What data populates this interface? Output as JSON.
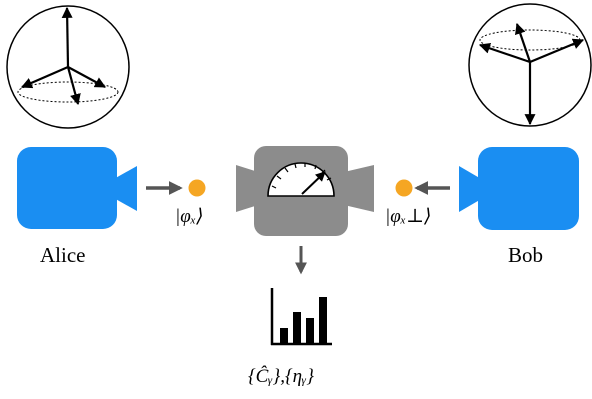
{
  "parties": {
    "alice": {
      "name": "Alice",
      "state_label": "|φₓ⟩"
    },
    "bob": {
      "name": "Bob",
      "state_label": "|φₓ⊥⟩"
    }
  },
  "output": {
    "label": "{Ĉᵧ},{ηᵧ}"
  },
  "colors": {
    "camera": "#1a8ef2",
    "photon": "#f5a623",
    "device": "#8c8c8c",
    "arrow": "#555555"
  },
  "icons": {
    "alice_source": "video-camera-icon",
    "bob_source": "video-camera-icon",
    "measurement": "meter-gauge-icon",
    "statistics": "bar-chart-icon",
    "alice_sphere": "bloch-sphere-icon",
    "bob_sphere": "bloch-sphere-icon"
  }
}
